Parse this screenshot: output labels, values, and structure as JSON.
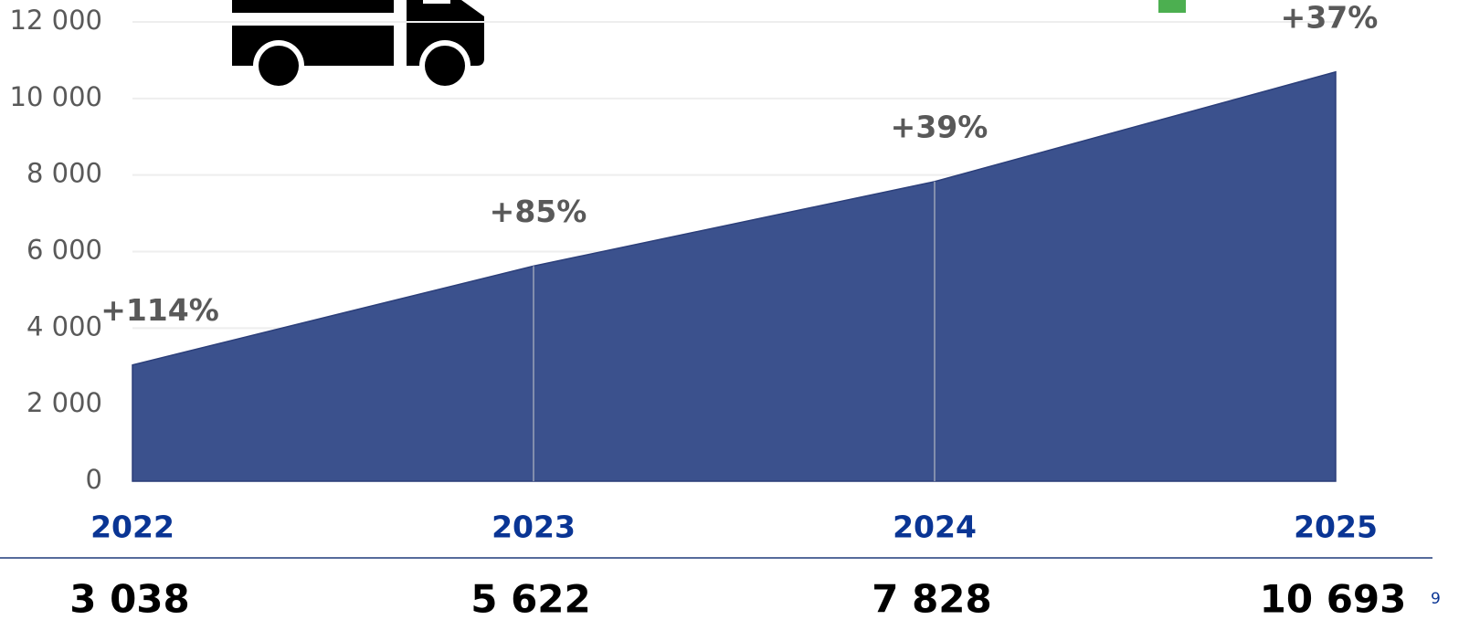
{
  "chart_data": {
    "type": "area",
    "categories": [
      "2022",
      "2023",
      "2024",
      "2025"
    ],
    "values": [
      3038,
      5622,
      7828,
      10693
    ],
    "value_labels": [
      "3 038",
      "5 622",
      "7 828",
      "10 693"
    ],
    "growth_labels": [
      "+114%",
      "+85%",
      "+39%",
      "+37%"
    ],
    "color": "#3b518d",
    "ylim": [
      0,
      12000
    ],
    "yticks": [
      0,
      {
        "value": 2000,
        "label": "2 000"
      },
      {
        "value": 4000,
        "label": "4 000"
      },
      {
        "value": 6000,
        "label": "6 000"
      },
      {
        "value": 8000,
        "label": "8 000"
      },
      {
        "value": 10000,
        "label": "10 000"
      },
      {
        "value": 12000,
        "label": "12 000"
      }
    ],
    "grid": true
  },
  "page_number": "9"
}
